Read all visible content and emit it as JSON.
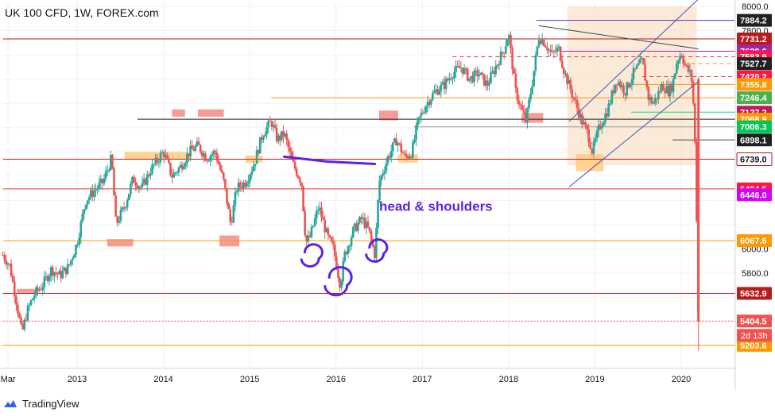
{
  "header": {
    "title": "UK 100 CFD, 1W, FOREX.com"
  },
  "branding": {
    "logo_text": "TradingView",
    "logo_icon": "tradingview-logo-icon"
  },
  "colors": {
    "up": "#26a69a",
    "down": "#ef5350",
    "support_orange": "#ff9800",
    "resistance_red": "#b71c1c",
    "channel_blue": "#3f51b5",
    "annotation_purple": "#5b22e8",
    "zone_fill": "#f7d9b8",
    "highlight_red": "#f28b82",
    "highlight_orange": "#ffcc80"
  },
  "chart_data": {
    "type": "candlestick",
    "title": "UK 100 CFD, 1W, FOREX.com",
    "xlabel": "",
    "ylabel": "",
    "ylim": [
      5160,
      8000
    ],
    "y_ticks": [
      5800.0,
      6000.0,
      7800.0,
      8000.0
    ],
    "x_ticks": [
      "Mar",
      "2013",
      "2014",
      "2015",
      "2016",
      "2017",
      "2018",
      "2019",
      "2020"
    ],
    "x_tick_years": [
      2012.2,
      2013.0,
      2014.0,
      2015.0,
      2016.0,
      2017.0,
      2018.0,
      2019.0,
      2020.0
    ],
    "x_range": [
      2012.14,
      2020.7
    ],
    "grid": true,
    "legend": "none",
    "price_path": [
      [
        2012.14,
        5950
      ],
      [
        2012.22,
        5860
      ],
      [
        2012.3,
        5550
      ],
      [
        2012.36,
        5300
      ],
      [
        2012.42,
        5480
      ],
      [
        2012.5,
        5620
      ],
      [
        2012.6,
        5700
      ],
      [
        2012.7,
        5830
      ],
      [
        2012.8,
        5780
      ],
      [
        2012.9,
        5850
      ],
      [
        2013.0,
        6050
      ],
      [
        2013.1,
        6400
      ],
      [
        2013.2,
        6480
      ],
      [
        2013.3,
        6550
      ],
      [
        2013.4,
        6750
      ],
      [
        2013.45,
        6200
      ],
      [
        2013.55,
        6350
      ],
      [
        2013.65,
        6580
      ],
      [
        2013.75,
        6500
      ],
      [
        2013.85,
        6650
      ],
      [
        2014.0,
        6800
      ],
      [
        2014.1,
        6600
      ],
      [
        2014.2,
        6680
      ],
      [
        2014.3,
        6800
      ],
      [
        2014.4,
        6850
      ],
      [
        2014.5,
        6750
      ],
      [
        2014.6,
        6800
      ],
      [
        2014.7,
        6550
      ],
      [
        2014.78,
        6200
      ],
      [
        2014.85,
        6500
      ],
      [
        2014.95,
        6550
      ],
      [
        2015.05,
        6700
      ],
      [
        2015.15,
        6950
      ],
      [
        2015.25,
        7050
      ],
      [
        2015.32,
        6900
      ],
      [
        2015.4,
        6950
      ],
      [
        2015.5,
        6700
      ],
      [
        2015.6,
        6550
      ],
      [
        2015.65,
        6050
      ],
      [
        2015.7,
        6100
      ],
      [
        2015.8,
        6350
      ],
      [
        2015.9,
        6100
      ],
      [
        2015.97,
        6000
      ],
      [
        2016.05,
        5700
      ],
      [
        2016.1,
        5950
      ],
      [
        2016.2,
        6150
      ],
      [
        2016.3,
        6250
      ],
      [
        2016.38,
        6150
      ],
      [
        2016.45,
        5950
      ],
      [
        2016.5,
        6550
      ],
      [
        2016.6,
        6750
      ],
      [
        2016.7,
        6900
      ],
      [
        2016.8,
        6750
      ],
      [
        2016.88,
        6800
      ],
      [
        2016.95,
        7050
      ],
      [
        2017.05,
        7200
      ],
      [
        2017.15,
        7300
      ],
      [
        2017.25,
        7350
      ],
      [
        2017.35,
        7450
      ],
      [
        2017.45,
        7500
      ],
      [
        2017.55,
        7400
      ],
      [
        2017.65,
        7450
      ],
      [
        2017.75,
        7350
      ],
      [
        2017.85,
        7500
      ],
      [
        2017.95,
        7650
      ],
      [
        2018.0,
        7780
      ],
      [
        2018.08,
        7300
      ],
      [
        2018.15,
        7150
      ],
      [
        2018.2,
        7050
      ],
      [
        2018.28,
        7400
      ],
      [
        2018.35,
        7750
      ],
      [
        2018.42,
        7700
      ],
      [
        2018.5,
        7600
      ],
      [
        2018.58,
        7650
      ],
      [
        2018.65,
        7450
      ],
      [
        2018.75,
        7250
      ],
      [
        2018.85,
        7050
      ],
      [
        2018.92,
        6950
      ],
      [
        2018.97,
        6800
      ],
      [
        2019.05,
        7000
      ],
      [
        2019.15,
        7150
      ],
      [
        2019.25,
        7400
      ],
      [
        2019.35,
        7300
      ],
      [
        2019.45,
        7450
      ],
      [
        2019.55,
        7550
      ],
      [
        2019.62,
        7250
      ],
      [
        2019.68,
        7200
      ],
      [
        2019.78,
        7350
      ],
      [
        2019.85,
        7300
      ],
      [
        2019.9,
        7350
      ],
      [
        2019.95,
        7550
      ],
      [
        2020.0,
        7620
      ],
      [
        2020.05,
        7500
      ],
      [
        2020.1,
        7450
      ],
      [
        2020.12,
        7400
      ],
      [
        2020.15,
        7100
      ],
      [
        2020.17,
        6600
      ],
      [
        2020.19,
        5800
      ],
      [
        2020.2,
        5400
      ]
    ],
    "series": [
      {
        "name": "",
        "values": []
      }
    ],
    "price_levels": [
      {
        "label": "7884.2",
        "value": 7884.2,
        "line_color": "#5e35b1",
        "label_bg": "#212121",
        "label_fg": "#ffffff",
        "style": "solid",
        "x_start": 2018.32
      },
      {
        "label": "7731.2",
        "value": 7731.2,
        "line_color": "#b71c1c",
        "label_bg": "#b71c1c",
        "label_fg": "#ffffff",
        "style": "solid",
        "x_start": 2012.14
      },
      {
        "label": "7629.6",
        "value": 7629.6,
        "line_color": "#9c27b0",
        "label_bg": "#9c27b0",
        "label_fg": "#ffffff",
        "style": "solid",
        "x_start": 2018.6
      },
      {
        "label": "7583.9",
        "value": 7583.9,
        "line_color": "#e53935",
        "label_bg": "#ff1744",
        "label_fg": "#ffffff",
        "style": "dashed",
        "x_start": 2017.35
      },
      {
        "label": "7527.7",
        "value": 7527.7,
        "line_color": "#ff9800",
        "label_bg": "#212121",
        "label_fg": "#ffffff",
        "style": "dashed",
        "x_start": 2019.95
      },
      {
        "label": "7420.2",
        "value": 7420.2,
        "line_color": "#e53935",
        "label_bg": "#ff1744",
        "label_fg": "#ffffff",
        "style": "dashed",
        "x_start": 2019.55
      },
      {
        "label": "7355.8",
        "value": 7355.8,
        "line_color": "#ff9800",
        "label_bg": "#ff9800",
        "label_fg": "#ffffff",
        "style": "solid",
        "x_start": 2019.4
      },
      {
        "label": "7246.4",
        "value": 7246.4,
        "line_color": "#ff9800",
        "label_bg": "#4caf50",
        "label_fg": "#ffffff",
        "style": "solid",
        "x_start": 2015.25
      },
      {
        "label": "7127.2",
        "value": 7127.2,
        "line_color": "#00e676",
        "label_bg": "#c2185b",
        "label_fg": "#ffffff",
        "style": "solid",
        "x_start": 2019.42
      },
      {
        "label": "7068.9",
        "value": 7068.9,
        "line_color": "#212121",
        "label_bg": "#ff9800",
        "label_fg": "#ffffff",
        "style": "solid",
        "x_start": 2013.7
      },
      {
        "label": "7006.3",
        "value": 7006.3,
        "line_color": "#9e9e9e",
        "label_bg": "#00c853",
        "label_fg": "#ffffff",
        "style": "solid",
        "x_start": 2016.9
      },
      {
        "label": "6898.1",
        "value": 6898.1,
        "line_color": "#424242",
        "label_bg": "#212121",
        "label_fg": "#ffffff",
        "style": "solid",
        "x_start": 2019.9
      },
      {
        "label": "6739.0",
        "value": 6739.0,
        "line_color": "#b71c1c",
        "label_bg": "#ffffff",
        "label_fg": "#131722",
        "style": "solid",
        "x_start": 2012.14
      },
      {
        "label": "6494.5",
        "value": 6494.5,
        "line_color": "#e53935",
        "label_bg": "#ff1744",
        "label_fg": "#ffffff",
        "style": "solid",
        "x_start": 2012.14
      },
      {
        "label": "6446.0",
        "value": 6446.0,
        "line_color": "#7c4dff",
        "label_bg": "#d500f9",
        "label_fg": "#ffffff",
        "style": "none",
        "x_start": 2020.18
      },
      {
        "label": "6067.6",
        "value": 6067.6,
        "line_color": "#ff9800",
        "label_bg": "#ff9800",
        "label_fg": "#ffffff",
        "style": "solid",
        "x_start": 2012.14
      },
      {
        "label": "5632.9",
        "value": 5632.9,
        "line_color": "#b71c1c",
        "label_bg": "#b71c1c",
        "label_fg": "#ffffff",
        "style": "solid",
        "x_start": 2012.14
      },
      {
        "label": "5404.5",
        "value": 5404.5,
        "line_color": "#ef5350",
        "label_bg": "#ef5350",
        "label_fg": "#ffffff",
        "style": "dotted",
        "x_start": 2012.14
      },
      {
        "label": "5203.6",
        "value": 5203.6,
        "line_color": "#ff9800",
        "label_bg": "#ff9800",
        "label_fg": "#ffffff",
        "style": "solid",
        "x_start": 2012.14
      }
    ],
    "countdown_label": "2d 13h",
    "annotations": [
      {
        "text": "head & shoulders",
        "x": 2016.5,
        "y": 6315,
        "color": "#5b22e8"
      }
    ],
    "neckline": [
      [
        2015.4,
        6760
      ],
      [
        2015.9,
        6720
      ],
      [
        2016.45,
        6700
      ]
    ],
    "shoulder_marks": [
      [
        2015.7,
        5920
      ],
      [
        2016.0,
        5700
      ],
      [
        2016.45,
        5960
      ]
    ],
    "channel": {
      "lower": [
        [
          2018.7,
          6510
        ],
        [
          2020.2,
          7380
        ]
      ],
      "upper": [
        [
          2018.7,
          7050
        ],
        [
          2020.2,
          8060
        ]
      ],
      "zone": [
        [
          2018.68,
          6690
        ],
        [
          2020.18,
          8000
        ]
      ]
    },
    "trendline": [
      [
        2018.35,
        7840
      ],
      [
        2020.2,
        7650
      ]
    ],
    "highlight_boxes": [
      {
        "x": [
          2013.35,
          2013.65
        ],
        "y": [
          6020,
          6080
        ],
        "color": "#f28b82"
      },
      {
        "x": [
          2014.1,
          2014.25
        ],
        "y": [
          7090,
          7150
        ],
        "color": "#f28b82"
      },
      {
        "x": [
          2014.4,
          2014.7
        ],
        "y": [
          7090,
          7150
        ],
        "color": "#f28b82"
      },
      {
        "x": [
          2014.65,
          2014.88
        ],
        "y": [
          6020,
          6110
        ],
        "color": "#f28b82"
      },
      {
        "x": [
          2016.5,
          2016.72
        ],
        "y": [
          7060,
          7140
        ],
        "color": "#f28b82"
      },
      {
        "x": [
          2018.15,
          2018.4
        ],
        "y": [
          7040,
          7120
        ],
        "color": "#f28b82"
      },
      {
        "x": [
          2013.55,
          2014.33
        ],
        "y": [
          6740,
          6800
        ],
        "color": "#ffcc80"
      },
      {
        "x": [
          2014.95,
          2015.15
        ],
        "y": [
          6710,
          6770
        ],
        "color": "#ffcc80"
      },
      {
        "x": [
          2016.72,
          2016.95
        ],
        "y": [
          6710,
          6780
        ],
        "color": "#ffcc80"
      },
      {
        "x": [
          2018.78,
          2019.1
        ],
        "y": [
          6640,
          6780
        ],
        "color": "#ffcc80"
      },
      {
        "x": [
          2012.3,
          2012.55
        ],
        "y": [
          5630,
          5670
        ],
        "color": "#f28b82"
      }
    ]
  }
}
